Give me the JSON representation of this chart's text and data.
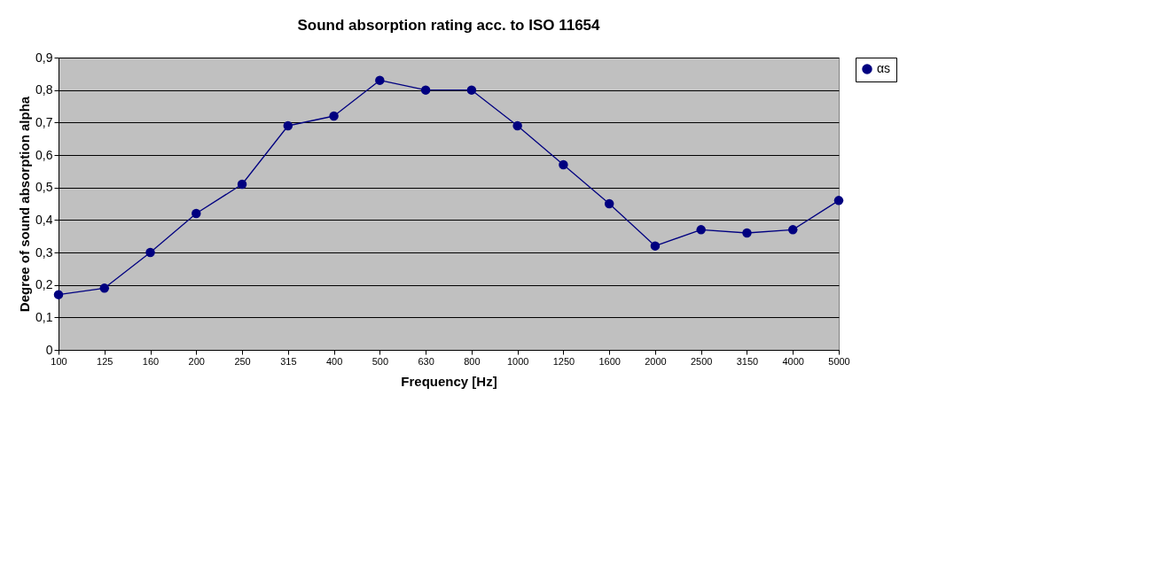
{
  "chart_data": {
    "type": "line",
    "title": "Sound absorption rating acc. to ISO 11654",
    "xlabel": "Frequency [Hz]",
    "ylabel": "Degree of sound absorption alpha",
    "categories": [
      "100",
      "125",
      "160",
      "200",
      "250",
      "315",
      "400",
      "500",
      "630",
      "800",
      "1000",
      "1250",
      "1600",
      "2000",
      "2500",
      "3150",
      "4000",
      "5000"
    ],
    "series": [
      {
        "name": "αs",
        "color": "#000080",
        "values": [
          0.17,
          0.19,
          0.3,
          0.42,
          0.51,
          0.69,
          0.72,
          0.83,
          0.8,
          0.8,
          0.69,
          0.57,
          0.45,
          0.32,
          0.37,
          0.36,
          0.37,
          0.46
        ]
      }
    ],
    "ylim": [
      0,
      0.9
    ],
    "yticks": [
      0,
      {
        "value": 0.1,
        "label": "0,1"
      },
      {
        "value": 0.2,
        "label": "0,2"
      },
      {
        "value": 0.3,
        "label": "0,3"
      },
      {
        "value": 0.4,
        "label": "0,4"
      },
      {
        "value": 0.5,
        "label": "0,5"
      },
      {
        "value": 0.6,
        "label": "0,6"
      },
      {
        "value": 0.7,
        "label": "0,7"
      },
      {
        "value": 0.8,
        "label": "0,8"
      },
      {
        "value": 0.9,
        "label": "0,9"
      }
    ],
    "grid": "y",
    "legend": "right",
    "marker": "circle",
    "line_style": "solid"
  }
}
